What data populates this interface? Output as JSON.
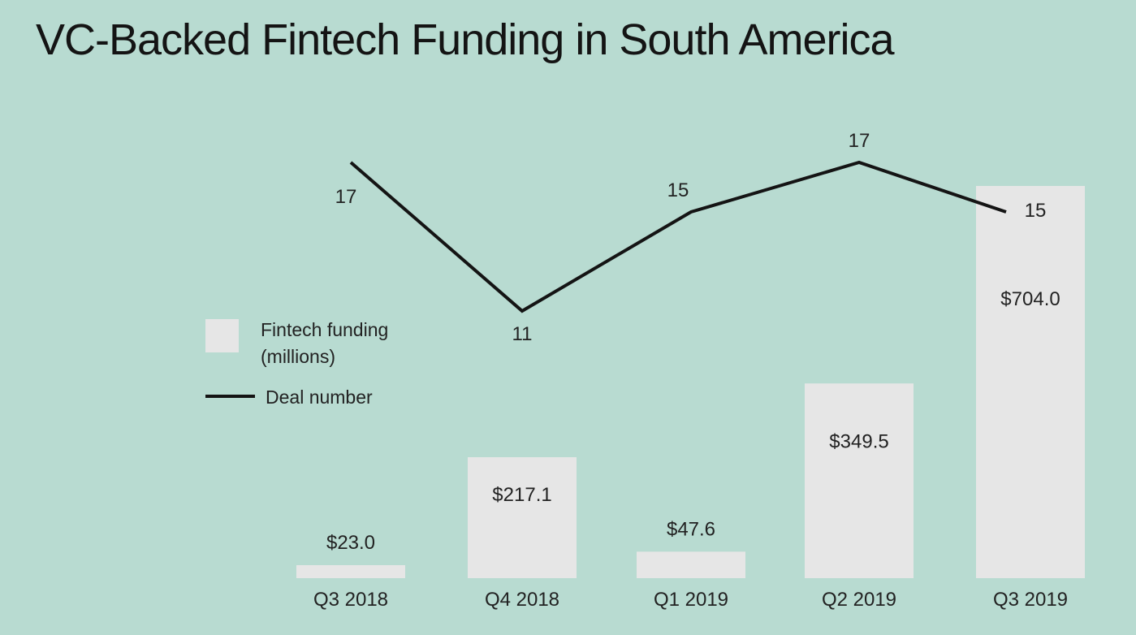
{
  "title": "VC-Backed Fintech Funding in South America",
  "chart_data": {
    "type": "bar",
    "title": "VC-Backed Fintech Funding in South America",
    "categories": [
      "Q3 2018",
      "Q4 2018",
      "Q1 2019",
      "Q2 2019",
      "Q3 2019"
    ],
    "series": [
      {
        "name": "Fintech funding (millions)",
        "type": "bar",
        "values": [
          23.0,
          217.1,
          47.6,
          349.5,
          704.0
        ],
        "labels": [
          "$23.0",
          "$217.1",
          "$47.6",
          "$349.5",
          "$704.0"
        ],
        "color": "#e6e6e6"
      },
      {
        "name": "Deal number",
        "type": "line",
        "values": [
          17,
          11,
          15,
          17,
          15
        ],
        "labels": [
          "17",
          "11",
          "15",
          "17",
          "15"
        ],
        "color": "#141414"
      }
    ],
    "legend": {
      "placement": "left",
      "items": [
        {
          "label_lines": [
            "Fintech funding",
            "(millions)"
          ],
          "symbol": "box"
        },
        {
          "label_lines": [
            "Deal number"
          ],
          "symbol": "line"
        }
      ]
    },
    "xlabel": "",
    "ylabel": "",
    "grid": false
  }
}
